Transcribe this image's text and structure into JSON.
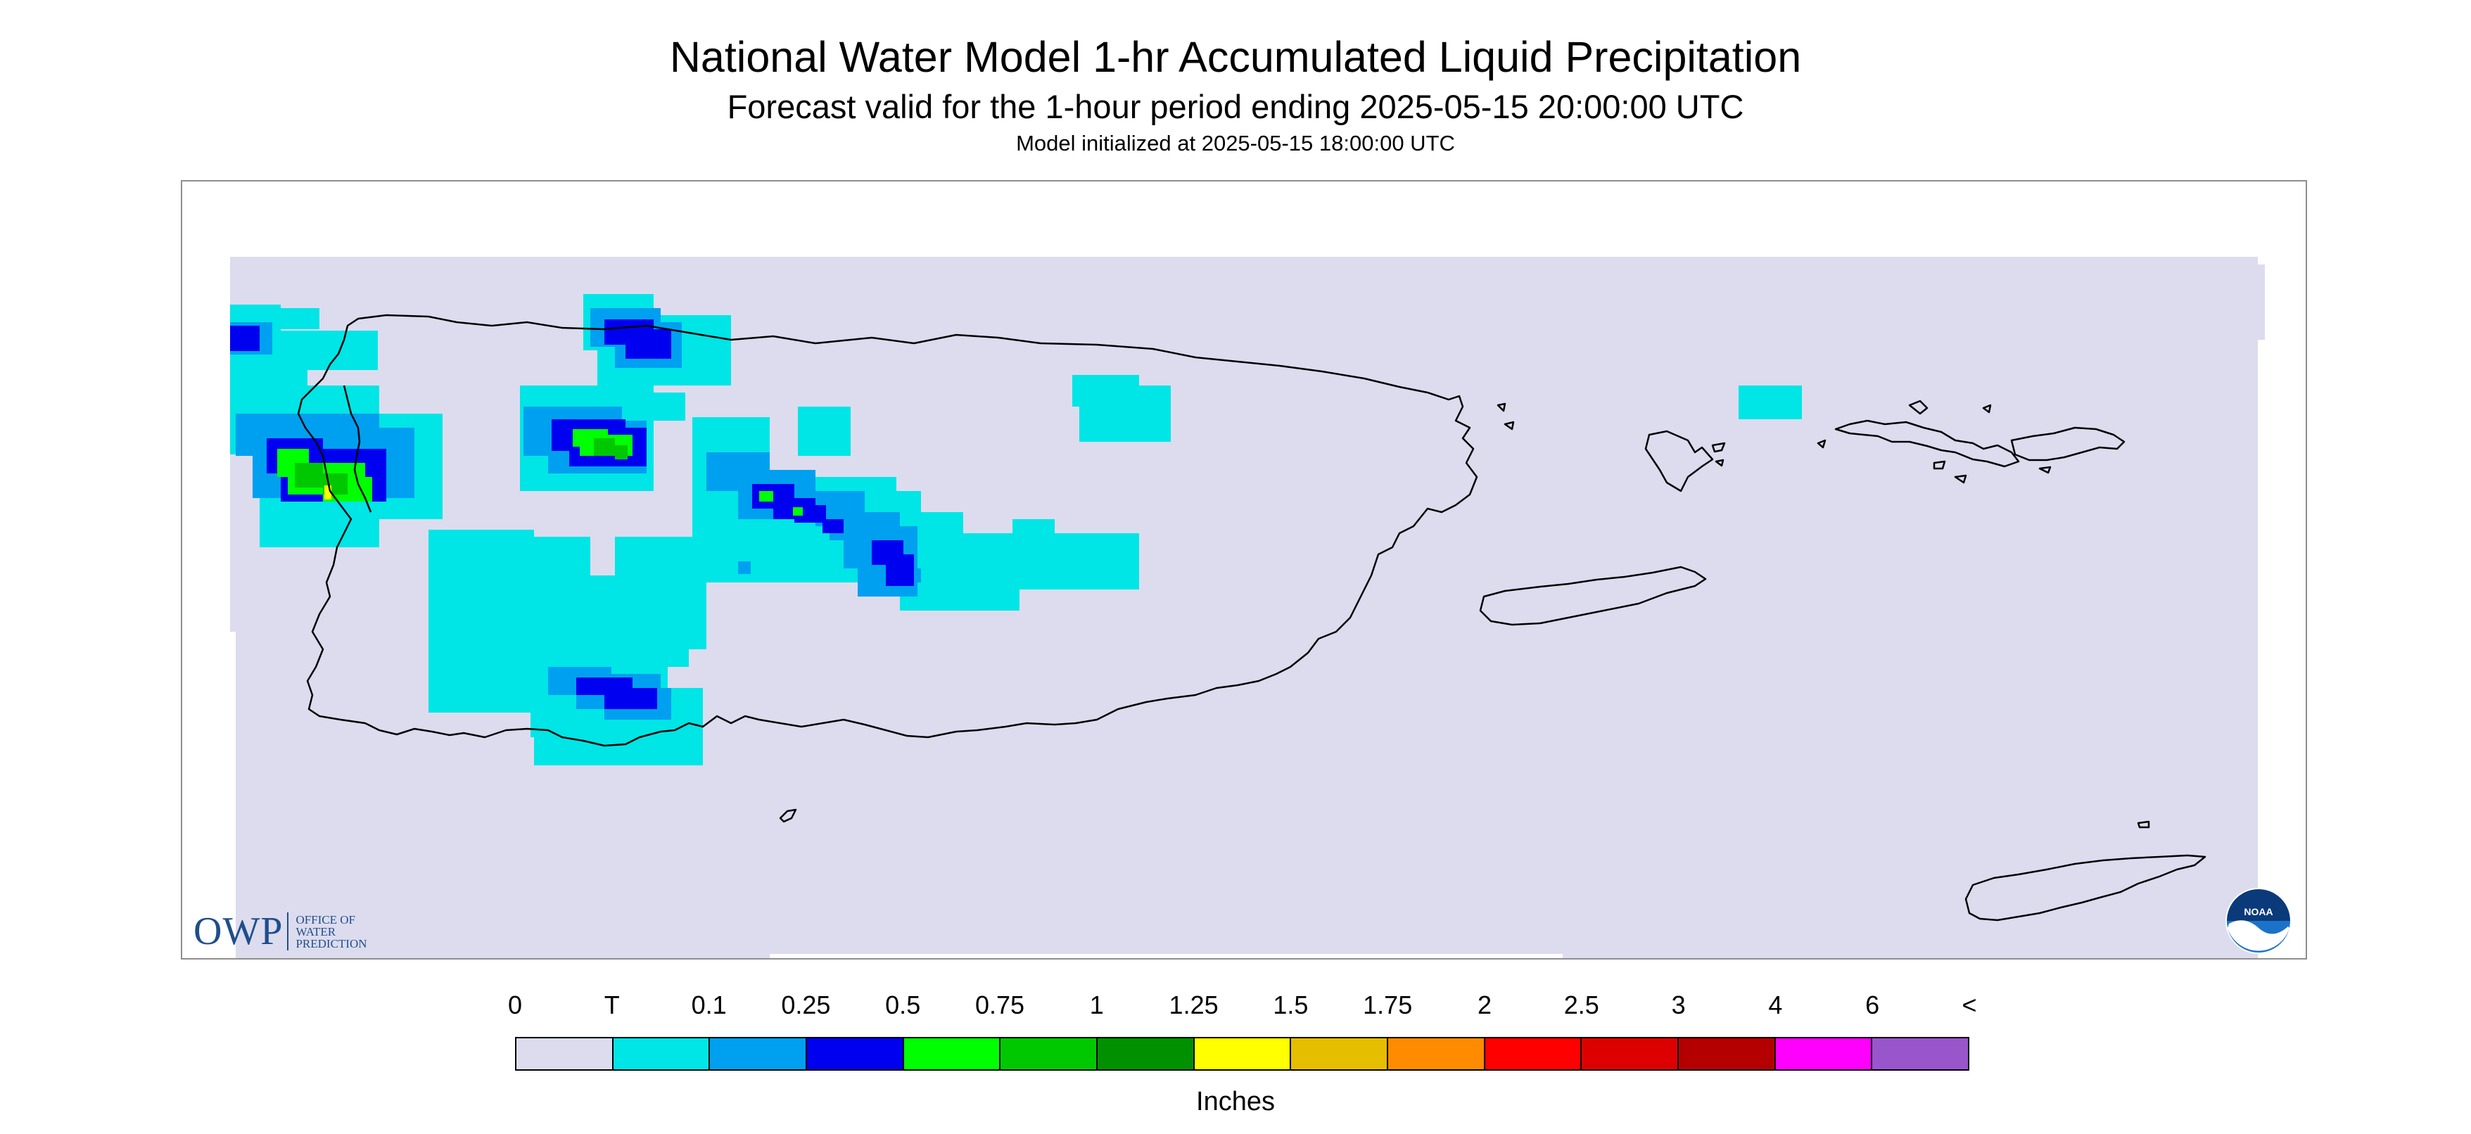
{
  "title": "National Water Model 1-hr Accumulated Liquid Precipitation",
  "subtitle": "Forecast valid for the 1-hour period ending 2025-05-15 20:00:00 UTC",
  "init_line": "Model initialized at 2025-05-15 18:00:00 UTC",
  "colors": {
    "background_map": "#dcdcee",
    "coastline": "#000000",
    "frame": "#8e8e8e"
  },
  "logos": {
    "owp": {
      "mark": "OWP",
      "lines": [
        "OFFICE OF",
        "WATER",
        "PREDICTION"
      ]
    },
    "noaa": {
      "icon": "noaa-logo-icon"
    }
  },
  "legend": {
    "labels": [
      "0",
      "T",
      "0.1",
      "0.25",
      "0.5",
      "0.75",
      "1",
      "1.25",
      "1.5",
      "1.75",
      "2",
      "2.5",
      "3",
      "4",
      "6",
      "<"
    ],
    "colors": [
      "#dcdcee",
      "#00e5e5",
      "#00a0f0",
      "#0000f0",
      "#00ff00",
      "#00c800",
      "#009000",
      "#ffff00",
      "#e6be00",
      "#ff8c00",
      "#ff0000",
      "#dc0000",
      "#b40000",
      "#ff00ff",
      "#9955cc"
    ],
    "units": "Inches"
  }
}
